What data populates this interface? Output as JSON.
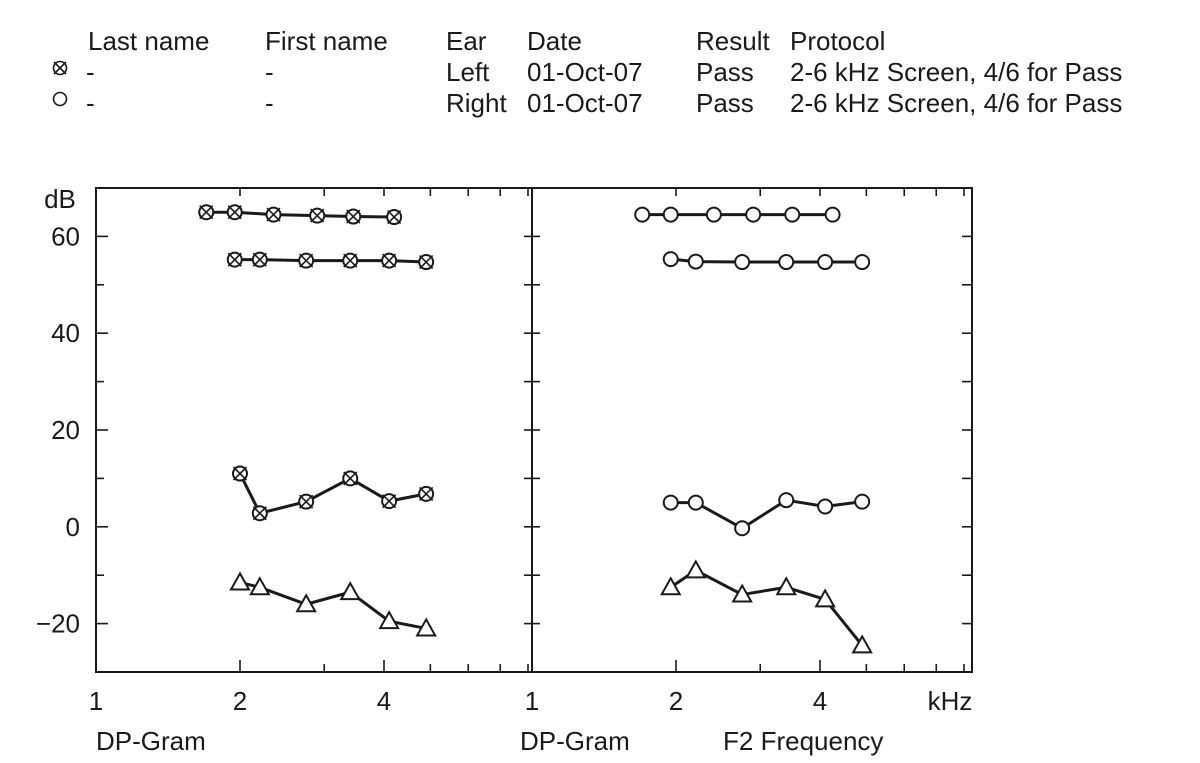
{
  "header": {
    "columns": {
      "last_name": "Last name",
      "first_name": "First name",
      "ear": "Ear",
      "date": "Date",
      "result": "Result",
      "protocol": "Protocol"
    },
    "rows": [
      {
        "symbol": "circle-cross-icon",
        "last_name": "-",
        "first_name": "-",
        "ear": "Left",
        "date": "01-Oct-07",
        "result": "Pass",
        "protocol": "2-6 kHz Screen, 4/6 for Pass"
      },
      {
        "symbol": "circle-icon",
        "last_name": "-",
        "first_name": "-",
        "ear": "Right",
        "date": "01-Oct-07",
        "result": "Pass",
        "protocol": "2-6 kHz Screen, 4/6 for Pass"
      }
    ]
  },
  "chart_data": {
    "type": "line",
    "ylabel": "dB",
    "xunit": "kHz",
    "ylim": [
      -30,
      70
    ],
    "yticks": [
      60,
      40,
      20,
      0,
      -20
    ],
    "xscale": "log",
    "grid": false,
    "panels": [
      {
        "name": "left",
        "label": "DP-Gram",
        "xlim": [
          1,
          8
        ],
        "xticks": [
          1,
          2,
          4
        ],
        "series": [
          {
            "marker": "circle-cross",
            "x": [
              1.7,
              1.95,
              2.35,
              2.9,
              3.45,
              4.2
            ],
            "y": [
              65,
              65,
              64.5,
              64.3,
              64.1,
              64
            ]
          },
          {
            "marker": "circle-cross",
            "x": [
              1.95,
              2.2,
              2.75,
              3.4,
              4.1,
              4.9
            ],
            "y": [
              55.2,
              55.2,
              55,
              55,
              55,
              54.7
            ]
          },
          {
            "marker": "circle-cross",
            "x": [
              2.0,
              2.2,
              2.75,
              3.4,
              4.1,
              4.9
            ],
            "y": [
              11,
              2.8,
              5.2,
              10,
              5.3,
              6.8
            ]
          },
          {
            "marker": "triangle",
            "x": [
              2.0,
              2.2,
              2.75,
              3.4,
              4.1,
              4.9
            ],
            "y": [
              -11.5,
              -12.5,
              -16,
              -13.5,
              -19.5,
              -21
            ]
          }
        ]
      },
      {
        "name": "right",
        "label": "DP-Gram",
        "axis_label": "F2 Frequency",
        "xlim": [
          1,
          8
        ],
        "xticks": [
          1,
          2,
          4
        ],
        "series": [
          {
            "marker": "circle",
            "x": [
              1.7,
              1.95,
              2.4,
              2.9,
              3.5,
              4.25
            ],
            "y": [
              64.5,
              64.5,
              64.5,
              64.5,
              64.5,
              64.5
            ]
          },
          {
            "marker": "circle",
            "x": [
              1.95,
              2.2,
              2.75,
              3.4,
              4.1,
              4.9
            ],
            "y": [
              55.3,
              54.8,
              54.7,
              54.7,
              54.7,
              54.7
            ]
          },
          {
            "marker": "circle",
            "x": [
              1.95,
              2.2,
              2.75,
              3.4,
              4.1,
              4.9
            ],
            "y": [
              5,
              5,
              -0.3,
              5.5,
              4.2,
              5.2
            ]
          },
          {
            "marker": "triangle",
            "x": [
              1.95,
              2.2,
              2.75,
              3.4,
              4.1,
              4.9
            ],
            "y": [
              -12.5,
              -9,
              -14,
              -12.5,
              -15,
              -24.5
            ]
          }
        ]
      }
    ]
  }
}
